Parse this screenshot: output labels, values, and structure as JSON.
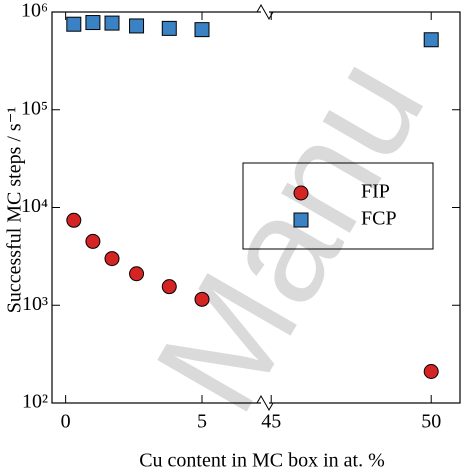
{
  "chart_data": {
    "type": "scatter",
    "ylabel": "Successful MC steps / s⁻¹",
    "xlabel": "Cu content in MC box in at. %",
    "watermark": "Manu",
    "log_y": true,
    "x_segments": [
      [
        -0.5,
        7.2
      ],
      [
        44.9,
        50.9
      ]
    ],
    "ylim": [
      100,
      1000000
    ],
    "yticks": [
      {
        "value": 100,
        "label": "10²"
      },
      {
        "value": 1000,
        "label": "10³"
      },
      {
        "value": 10000,
        "label": "10⁴"
      },
      {
        "value": 100000,
        "label": "10⁵"
      },
      {
        "value": 1000000,
        "label": "10⁶"
      }
    ],
    "xticks": [
      0,
      5,
      45,
      50
    ],
    "legend": "center right",
    "series": [
      {
        "name": "FIP",
        "color": "#d42424",
        "marker": "circle",
        "x": [
          0.3,
          1.0,
          1.7,
          2.6,
          3.8,
          5.0,
          50
        ],
        "values": [
          7400,
          4500,
          3000,
          2100,
          1550,
          1150,
          210
        ]
      },
      {
        "name": "FCP",
        "color": "#3b82c4",
        "marker": "square",
        "x": [
          0.3,
          1.0,
          1.7,
          2.6,
          3.8,
          5.0,
          50
        ],
        "values": [
          750000,
          780000,
          770000,
          720000,
          680000,
          660000,
          520000
        ]
      }
    ]
  }
}
